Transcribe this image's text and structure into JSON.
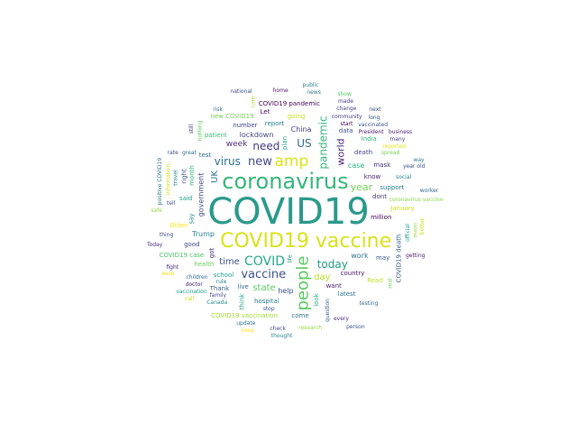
{
  "words": [
    {
      "text": "COVID19",
      "weight": 100,
      "color": "#2a9a8a"
    },
    {
      "text": "coronavirus",
      "weight": 60,
      "color": "#34b679"
    },
    {
      "text": "COVID19 vaccine",
      "weight": 56,
      "color": "#d8e219"
    },
    {
      "text": "people",
      "weight": 44,
      "color": "#5cc863"
    },
    {
      "text": "amp",
      "weight": 40,
      "color": "#dce319"
    },
    {
      "text": "COVID",
      "weight": 34,
      "color": "#22a884"
    },
    {
      "text": "new",
      "weight": 30,
      "color": "#414487"
    },
    {
      "text": "vaccine",
      "weight": 30,
      "color": "#3b518b"
    },
    {
      "text": "pandemic",
      "weight": 26,
      "color": "#35b779"
    },
    {
      "text": "today",
      "weight": 26,
      "color": "#1f988b"
    },
    {
      "text": "need",
      "weight": 26,
      "color": "#443983"
    },
    {
      "text": "virus",
      "weight": 26,
      "color": "#2d708e"
    },
    {
      "text": "US",
      "weight": 28,
      "color": "#31688e"
    },
    {
      "text": "world",
      "weight": 24,
      "color": "#482878"
    },
    {
      "text": "year",
      "weight": 24,
      "color": "#73d055"
    },
    {
      "text": "time",
      "weight": 22,
      "color": "#3e4a89"
    },
    {
      "text": "day",
      "weight": 22,
      "color": "#b8de29"
    },
    {
      "text": "state",
      "weight": 20,
      "color": "#5ec962"
    },
    {
      "text": "UK",
      "weight": 20,
      "color": "#2c728e"
    },
    {
      "text": "week",
      "weight": 18,
      "color": "#472d7b"
    },
    {
      "text": "Trump",
      "weight": 16,
      "color": "#26828e"
    },
    {
      "text": "lockdown",
      "weight": 14,
      "color": "#404688"
    },
    {
      "text": "case",
      "weight": 14,
      "color": "#29af7f"
    },
    {
      "text": "government",
      "weight": 14,
      "color": "#3e4c8a"
    },
    {
      "text": "work",
      "weight": 14,
      "color": "#2a788e"
    },
    {
      "text": "China",
      "weight": 14,
      "color": "#433e85"
    },
    {
      "text": "help",
      "weight": 14,
      "color": "#3b528b"
    },
    {
      "text": "know",
      "weight": 12,
      "color": "#482173"
    },
    {
      "text": "plan",
      "weight": 12,
      "color": "#20a386"
    },
    {
      "text": "dont",
      "weight": 12,
      "color": "#46337f"
    },
    {
      "text": "million",
      "weight": 12,
      "color": "#440154"
    },
    {
      "text": "country",
      "weight": 12,
      "color": "#471365"
    },
    {
      "text": "want",
      "weight": 12,
      "color": "#481a6c"
    },
    {
      "text": "got",
      "weight": 12,
      "color": "#481f70"
    },
    {
      "text": "live",
      "weight": 12,
      "color": "#30698e"
    },
    {
      "text": "school",
      "weight": 12,
      "color": "#1e9b8a"
    },
    {
      "text": "report",
      "weight": 12,
      "color": "#287c8e"
    },
    {
      "text": "death",
      "weight": 12,
      "color": "#424186"
    },
    {
      "text": "say",
      "weight": 12,
      "color": "#228c8d"
    },
    {
      "text": "hospital",
      "weight": 12,
      "color": "#277f8e"
    },
    {
      "text": "health",
      "weight": 12,
      "color": "#6ccd5a"
    },
    {
      "text": "good",
      "weight": 12,
      "color": "#3f4889"
    },
    {
      "text": "number",
      "weight": 12,
      "color": "#414487"
    },
    {
      "text": "look",
      "weight": 12,
      "color": "#27ad81"
    },
    {
      "text": "said",
      "weight": 12,
      "color": "#1fa188"
    },
    {
      "text": "test",
      "weight": 12,
      "color": "#2e6e8e"
    },
    {
      "text": "going",
      "weight": 12,
      "color": "#c5e021"
    },
    {
      "text": "data",
      "weight": 12,
      "color": "#39558c"
    },
    {
      "text": "month",
      "weight": 12,
      "color": "#2fb47c"
    },
    {
      "text": "mask",
      "weight": 12,
      "color": "#472f7d"
    },
    {
      "text": "support",
      "weight": 12,
      "color": "#26818e"
    },
    {
      "text": "may",
      "weight": 10,
      "color": "#3a548c"
    },
    {
      "text": "latest",
      "weight": 10,
      "color": "#2b758e"
    },
    {
      "text": "think",
      "weight": 10,
      "color": "#1f9e89"
    },
    {
      "text": "Thank",
      "weight": 10,
      "color": "#34618d"
    },
    {
      "text": "patient",
      "weight": 10,
      "color": "#3dbc74"
    },
    {
      "text": "Biden",
      "weight": 10,
      "color": "#fde725"
    },
    {
      "text": "Let",
      "weight": 10,
      "color": "#450559"
    },
    {
      "text": "right",
      "weight": 10,
      "color": "#3b528b"
    },
    {
      "text": "India",
      "weight": 10,
      "color": "#31b57b"
    },
    {
      "text": "January",
      "weight": 10,
      "color": "#cde11d"
    },
    {
      "text": "Read",
      "weight": 10,
      "color": "#bddf26"
    },
    {
      "text": "come",
      "weight": 10,
      "color": "#2d718e"
    },
    {
      "text": "COVID19 death",
      "weight": 10,
      "color": "#355f8d"
    },
    {
      "text": "COVID19 pandemic",
      "weight": 10,
      "color": "#440154"
    },
    {
      "text": "COVID19 case",
      "weight": 10,
      "color": "#4ac16d"
    },
    {
      "text": "COVID19 vaccination",
      "weight": 10,
      "color": "#a2da37"
    },
    {
      "text": "new COVID19",
      "weight": 10,
      "color": "#74d055"
    },
    {
      "text": "life",
      "weight": 8,
      "color": "#21918c"
    },
    {
      "text": "rule",
      "weight": 8,
      "color": "#287d8e"
    },
    {
      "text": "stop",
      "weight": 8,
      "color": "#38588c"
    },
    {
      "text": "start",
      "weight": 8,
      "color": "#440154"
    },
    {
      "text": "family",
      "weight": 8,
      "color": "#3e4989"
    },
    {
      "text": "question",
      "weight": 8,
      "color": "#355e8d"
    },
    {
      "text": "children",
      "weight": 8,
      "color": "#2f6c8e"
    },
    {
      "text": "community",
      "weight": 8,
      "color": "#453781"
    },
    {
      "text": "President",
      "weight": 8,
      "color": "#481769"
    },
    {
      "text": "tell",
      "weight": 8,
      "color": "#3b528b"
    },
    {
      "text": "travel",
      "weight": 8,
      "color": "#23898e"
    },
    {
      "text": "spread",
      "weight": 8,
      "color": "#7ad151"
    },
    {
      "text": "great",
      "weight": 8,
      "color": "#2e6f8e"
    },
    {
      "text": "social",
      "weight": 8,
      "color": "#25848e"
    },
    {
      "text": "Canada",
      "weight": 8,
      "color": "#228b8d"
    },
    {
      "text": "official",
      "weight": 8,
      "color": "#1fa088"
    },
    {
      "text": "doctor",
      "weight": 8,
      "color": "#482576"
    },
    {
      "text": "thing",
      "weight": 8,
      "color": "#414287"
    },
    {
      "text": "change",
      "weight": 8,
      "color": "#433d84"
    },
    {
      "text": "vaccinated",
      "weight": 7,
      "color": "#3a538b"
    },
    {
      "text": "positive COVID19",
      "weight": 7,
      "color": "#2a768e"
    },
    {
      "text": "coronavirus vaccine",
      "weight": 7,
      "color": "#8bd646"
    },
    {
      "text": "reported",
      "weight": 7,
      "color": "#e5e419"
    },
    {
      "text": "testing",
      "weight": 7,
      "color": "#306a8e"
    },
    {
      "text": "research",
      "weight": 7,
      "color": "#94d741"
    },
    {
      "text": "information",
      "weight": 7,
      "color": "#d0e11c"
    },
    {
      "text": "every",
      "weight": 7,
      "color": "#46307e"
    },
    {
      "text": "check",
      "weight": 7,
      "color": "#3f4788"
    },
    {
      "text": "update",
      "weight": 7,
      "color": "#2c738e"
    },
    {
      "text": "vaccination",
      "weight": 7,
      "color": "#1e9c89"
    },
    {
      "text": "nothing",
      "weight": 7,
      "color": "#5ec962"
    },
    {
      "text": "fight",
      "weight": 7,
      "color": "#482979"
    },
    {
      "text": "safe",
      "weight": 7,
      "color": "#95d840"
    },
    {
      "text": "rate",
      "weight": 7,
      "color": "#3e4a89"
    },
    {
      "text": "risk",
      "weight": 7,
      "color": "#31678e"
    },
    {
      "text": "care",
      "weight": 7,
      "color": "#addc30"
    },
    {
      "text": "home",
      "weight": 7,
      "color": "#471063"
    },
    {
      "text": "news",
      "weight": 7,
      "color": "#2a778e"
    },
    {
      "text": "made",
      "weight": 7,
      "color": "#433e85"
    },
    {
      "text": "long",
      "weight": 7,
      "color": "#38588c"
    },
    {
      "text": "mean",
      "weight": 7,
      "color": "#9bd93c"
    },
    {
      "text": "many",
      "weight": 7,
      "color": "#443a83"
    },
    {
      "text": "year old",
      "weight": 7,
      "color": "#3c4f8a"
    },
    {
      "text": "getting",
      "weight": 7,
      "color": "#481b6d"
    },
    {
      "text": "thought",
      "weight": 7,
      "color": "#24878e"
    },
    {
      "text": "real",
      "weight": 7,
      "color": "#67cc5c"
    },
    {
      "text": "keep",
      "weight": 7,
      "color": "#fde725"
    },
    {
      "text": "call",
      "weight": 7,
      "color": "#c8e020"
    },
    {
      "text": "wear",
      "weight": 7,
      "color": "#ece51b"
    },
    {
      "text": "Today",
      "weight": 7,
      "color": "#472a7a"
    },
    {
      "text": "still",
      "weight": 7,
      "color": "#453882"
    },
    {
      "text": "national",
      "weight": 7,
      "color": "#3d4d8a"
    },
    {
      "text": "public",
      "weight": 7,
      "color": "#29798e"
    },
    {
      "text": "show",
      "weight": 7,
      "color": "#56c667"
    },
    {
      "text": "next",
      "weight": 7,
      "color": "#3b528b"
    },
    {
      "text": "better",
      "weight": 7,
      "color": "#cae11f"
    },
    {
      "text": "business",
      "weight": 7,
      "color": "#482475"
    },
    {
      "text": "way",
      "weight": 7,
      "color": "#277e8e"
    },
    {
      "text": "worker",
      "weight": 7,
      "color": "#32658e"
    },
    {
      "text": "person",
      "weight": 7,
      "color": "#3c4f8a"
    }
  ]
}
